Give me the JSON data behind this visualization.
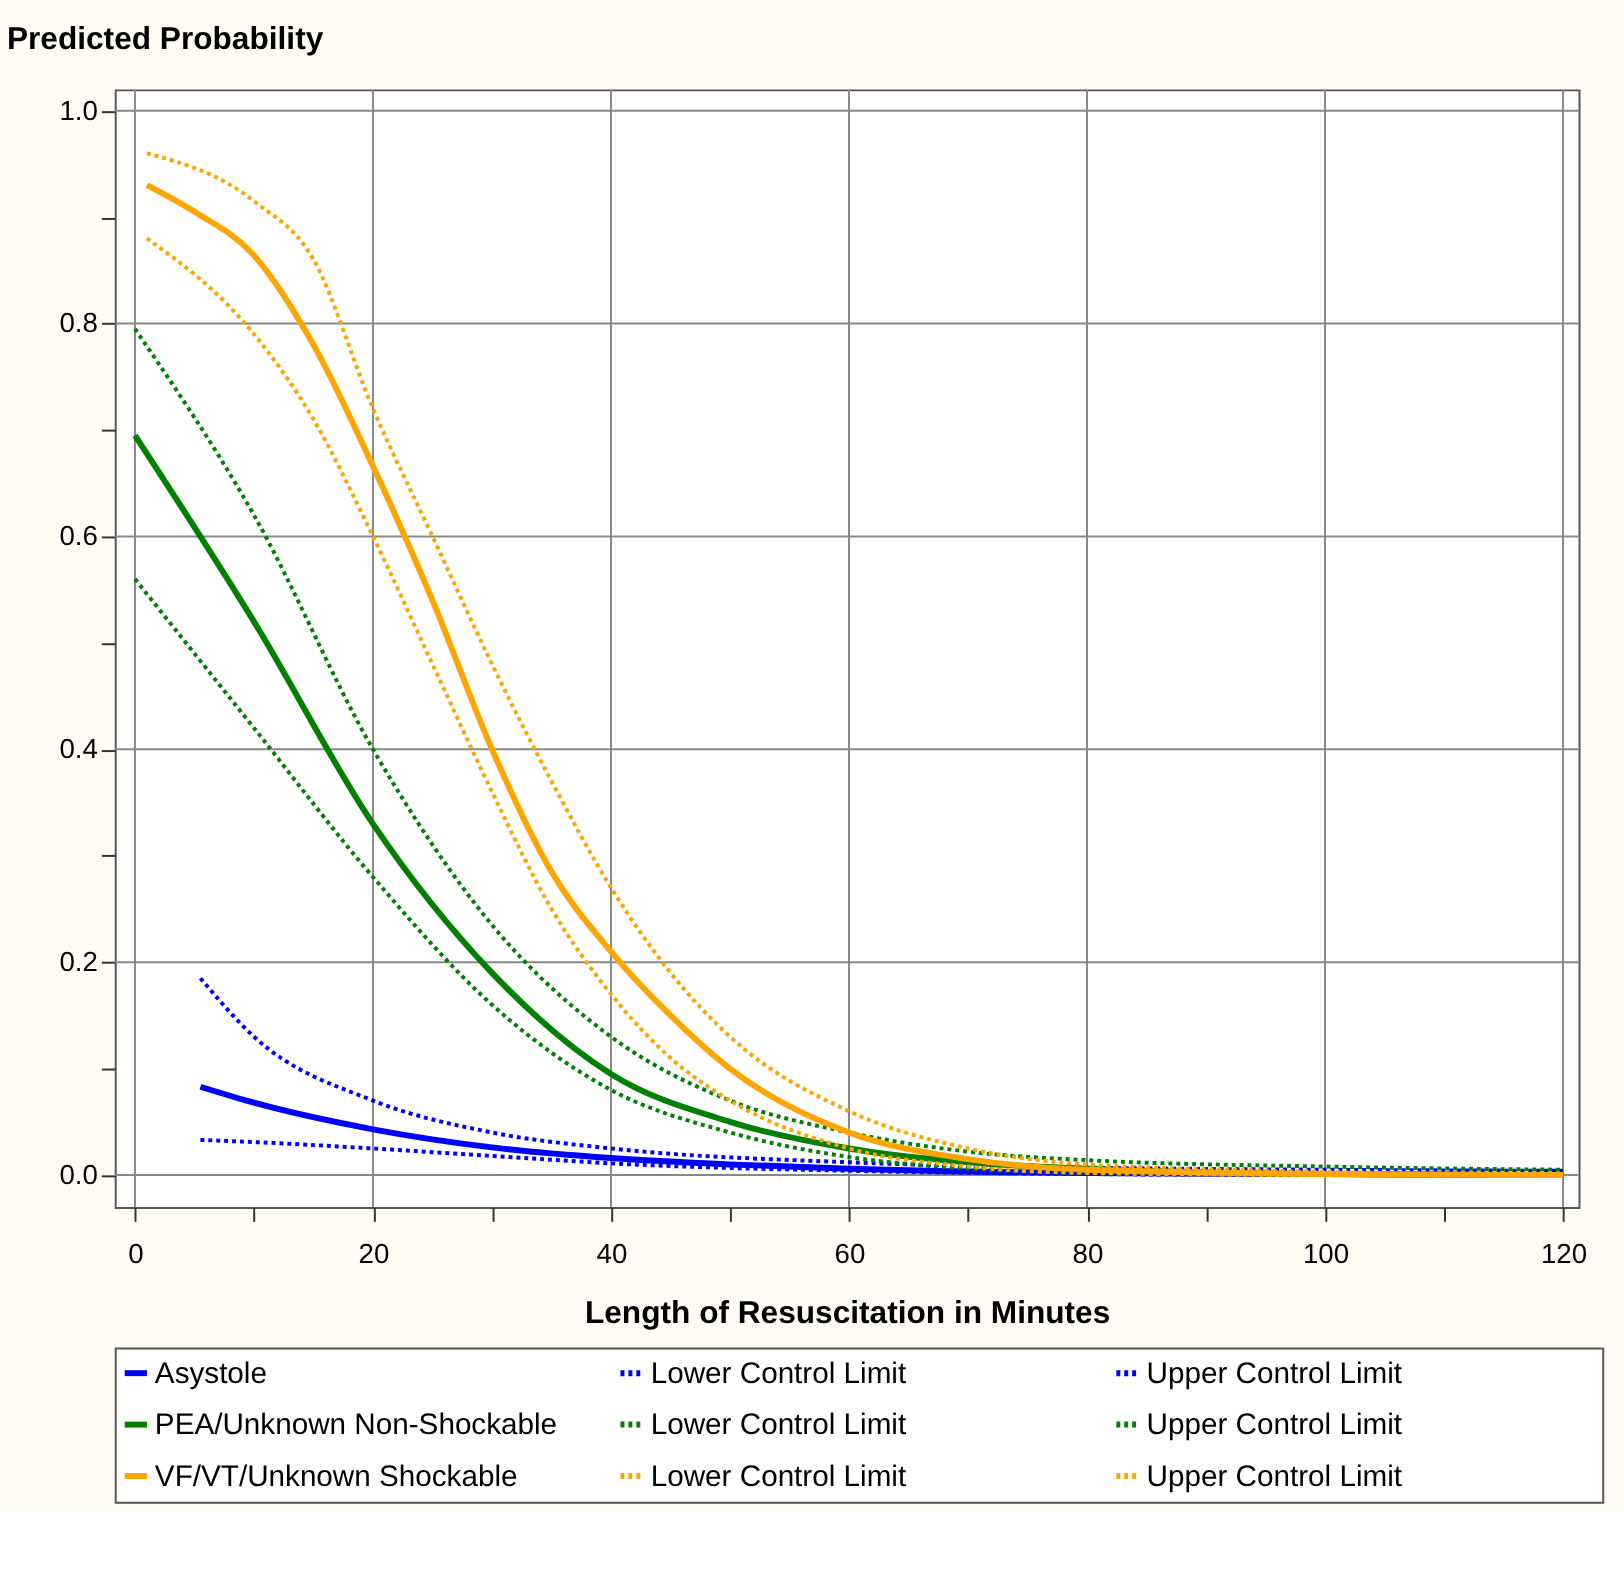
{
  "chart_data": {
    "type": "line",
    "ylabel": "Predicted Probability",
    "xlabel": "Length of Resuscitation in Minutes",
    "xlim": [
      -1.7,
      121.3
    ],
    "ylim": [
      -0.03,
      1.02
    ],
    "xticks": [
      0,
      {
        "value": 10,
        "label": null
      },
      20,
      {
        "value": 30,
        "label": null
      },
      40,
      {
        "value": 50,
        "label": null
      },
      60,
      {
        "value": 70,
        "label": null
      },
      80,
      {
        "value": 90,
        "label": null
      },
      100,
      {
        "value": 110,
        "label": null
      },
      120
    ],
    "yticks": [
      {
        "value": 0,
        "label": "0.0"
      },
      {
        "value": 0.1,
        "label": null
      },
      {
        "value": 0.2,
        "label": "0.2"
      },
      {
        "value": 0.3,
        "label": null
      },
      {
        "value": 0.4,
        "label": "0.4"
      },
      {
        "value": 0.5,
        "label": null
      },
      {
        "value": 0.6,
        "label": "0.6"
      },
      {
        "value": 0.7,
        "label": null
      },
      {
        "value": 0.8,
        "label": "0.8"
      },
      {
        "value": 0.9,
        "label": null
      },
      {
        "value": 1.0,
        "label": "1.0"
      }
    ],
    "grid": true,
    "legend": "bottom",
    "marker": "none",
    "series": [
      {
        "name": "Asystole",
        "color": "#0000ff",
        "line_style": "solid",
        "x": [
          5.5,
          10,
          20,
          30,
          40,
          50,
          60,
          80,
          100,
          120
        ],
        "values": [
          0.083,
          0.068,
          0.043,
          0.026,
          0.016,
          0.01,
          0.006,
          0.002,
          0.001,
          0.0
        ]
      },
      {
        "name": "Lower Control Limit",
        "color": "#0000ff",
        "line_style": "dotted",
        "x": [
          5.5,
          10,
          20,
          30,
          40,
          60,
          80,
          100,
          120
        ],
        "values": [
          0.033,
          0.031,
          0.025,
          0.018,
          0.011,
          0.004,
          0.001,
          0.0,
          0.0
        ]
      },
      {
        "name": "Upper Control Limit",
        "color": "#0000ff",
        "line_style": "dotted",
        "x": [
          5.5,
          10,
          20,
          30,
          40,
          60,
          80,
          100,
          120
        ],
        "values": [
          0.185,
          0.13,
          0.07,
          0.04,
          0.025,
          0.012,
          0.007,
          0.005,
          0.004
        ]
      },
      {
        "name": "PEA/Unknown Non-Shockable",
        "color": "#008000",
        "line_style": "solid",
        "x": [
          0,
          10,
          20,
          30,
          40,
          50,
          60,
          70,
          80,
          100,
          120
        ],
        "values": [
          0.695,
          0.52,
          0.33,
          0.19,
          0.095,
          0.05,
          0.025,
          0.012,
          0.006,
          0.001,
          0.0
        ]
      },
      {
        "name": "Lower Control Limit",
        "color": "#008000",
        "line_style": "dotted",
        "x": [
          0,
          10,
          20,
          30,
          40,
          50,
          60,
          70,
          80,
          100,
          120
        ],
        "values": [
          0.56,
          0.42,
          0.28,
          0.16,
          0.08,
          0.04,
          0.017,
          0.006,
          0.002,
          0.0,
          0.0
        ]
      },
      {
        "name": "Upper Control Limit",
        "color": "#008000",
        "line_style": "dotted",
        "x": [
          0,
          10,
          20,
          30,
          40,
          50,
          60,
          70,
          80,
          100,
          120
        ],
        "values": [
          0.795,
          0.62,
          0.4,
          0.235,
          0.13,
          0.07,
          0.04,
          0.022,
          0.014,
          0.008,
          0.005
        ]
      },
      {
        "name": "VF/VT/Unknown Shockable",
        "color": "#ffa500",
        "line_style": "solid",
        "x": [
          1,
          5,
          10,
          15,
          20,
          25,
          30,
          35,
          40,
          45,
          50,
          60,
          70,
          80,
          100,
          120
        ],
        "values": [
          0.93,
          0.905,
          0.864,
          0.78,
          0.666,
          0.54,
          0.4,
          0.285,
          0.21,
          0.15,
          0.1,
          0.04,
          0.015,
          0.005,
          0.001,
          0.0
        ]
      },
      {
        "name": "Lower Control Limit",
        "color": "#ffa500",
        "line_style": "dotted",
        "x": [
          1,
          10,
          15,
          20,
          25,
          30,
          35,
          40,
          45,
          50,
          60,
          70,
          80,
          100,
          120
        ],
        "values": [
          0.88,
          0.79,
          0.71,
          0.6,
          0.48,
          0.36,
          0.25,
          0.17,
          0.11,
          0.07,
          0.025,
          0.008,
          0.002,
          0.0,
          0.0
        ]
      },
      {
        "name": "Upper Control Limit",
        "color": "#ffa500",
        "line_style": "dotted",
        "x": [
          1,
          10,
          15,
          20,
          25,
          30,
          35,
          40,
          45,
          50,
          60,
          70,
          80,
          100,
          120
        ],
        "values": [
          0.96,
          0.915,
          0.86,
          0.72,
          0.6,
          0.48,
          0.37,
          0.27,
          0.19,
          0.13,
          0.06,
          0.025,
          0.01,
          0.003,
          0.0
        ]
      }
    ]
  }
}
